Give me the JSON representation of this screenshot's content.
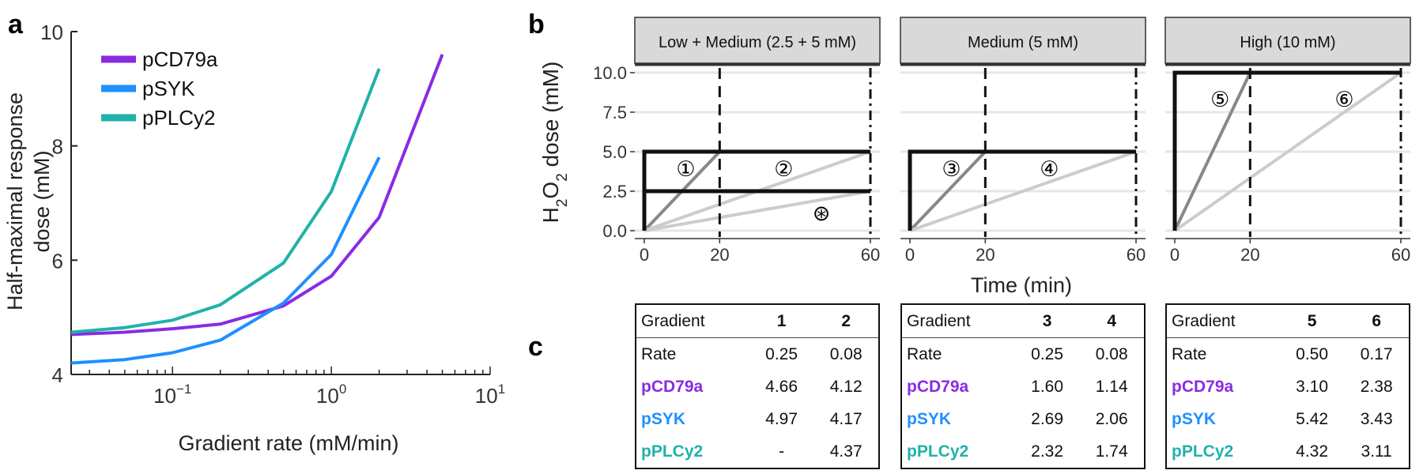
{
  "colors": {
    "pCD79a": "#8a2be2",
    "pSYK": "#1e90ff",
    "pPLCy2": "#20b2aa",
    "dark": "#111111",
    "mid": "#888888",
    "light": "#cccccc"
  },
  "panel_labels": {
    "a": "a",
    "b": "b",
    "c": "c"
  },
  "chart_data": [
    {
      "type": "line",
      "panel": "a",
      "xlabel": "Gradient rate (mM/min)",
      "ylabel_line1": "Half-maximal response",
      "ylabel_line2": "dose (mM)",
      "xscale": "log",
      "xlim": [
        0.023,
        10
      ],
      "ylim": [
        4,
        10
      ],
      "xticks": [
        {
          "value": 0.1,
          "base": "10",
          "exp": "−1"
        },
        {
          "value": 1,
          "base": "10",
          "exp": "0"
        },
        {
          "value": 10,
          "base": "10",
          "exp": "1"
        }
      ],
      "yticks": [
        "4",
        "6",
        "8",
        "10"
      ],
      "legend_position": "top-left",
      "series": [
        {
          "name": "pCD79a",
          "x": [
            0.023,
            0.05,
            0.1,
            0.2,
            0.5,
            1.0,
            2.0,
            5.0
          ],
          "y": [
            4.7,
            4.74,
            4.8,
            4.88,
            5.2,
            5.72,
            6.75,
            9.6
          ]
        },
        {
          "name": "pSYK",
          "x": [
            0.023,
            0.05,
            0.1,
            0.2,
            0.5,
            1.0,
            2.0
          ],
          "y": [
            4.2,
            4.26,
            4.38,
            4.6,
            5.25,
            6.1,
            7.8
          ]
        },
        {
          "name": "pPLCy2",
          "x": [
            0.023,
            0.05,
            0.1,
            0.2,
            0.5,
            1.0,
            2.0
          ],
          "y": [
            4.74,
            4.82,
            4.95,
            5.22,
            5.95,
            7.2,
            9.35
          ]
        }
      ]
    },
    {
      "type": "line",
      "panel": "b",
      "ylabel_main": "H",
      "ylabel_sub": "2",
      "ylabel_mid": "O",
      "ylabel_sub2": "2",
      "ylabel_tail": " dose (mM)",
      "xlabel": "Time (min)",
      "ylim": [
        0,
        10
      ],
      "yticks": [
        "0.0",
        "2.5",
        "5.0",
        "7.5",
        "10.0"
      ],
      "xticks": [
        "0",
        "20",
        "60"
      ],
      "facets": [
        {
          "strip": "Low + Medium (2.5 + 5 mM)",
          "steps": [
            5,
            2.5
          ],
          "ramps": [
            {
              "shade": "mid",
              "x": [
                0,
                20
              ],
              "y": [
                0,
                5
              ],
              "label": "①",
              "lx": 11,
              "ly": 3.9
            },
            {
              "shade": "light",
              "x": [
                0,
                60
              ],
              "y": [
                0,
                5
              ],
              "label": "②",
              "lx": 37,
              "ly": 3.9
            },
            {
              "shade": "light",
              "x": [
                0,
                60
              ],
              "y": [
                0,
                2.5
              ],
              "label": "⊛",
              "lx": 47,
              "ly": 1.1
            }
          ]
        },
        {
          "strip": "Medium (5 mM)",
          "steps": [
            5
          ],
          "ramps": [
            {
              "shade": "mid",
              "x": [
                0,
                20
              ],
              "y": [
                0,
                5
              ],
              "label": "③",
              "lx": 11,
              "ly": 3.9
            },
            {
              "shade": "light",
              "x": [
                0,
                60
              ],
              "y": [
                0,
                5
              ],
              "label": "④",
              "lx": 37,
              "ly": 3.9
            }
          ]
        },
        {
          "strip": "High (10 mM)",
          "steps": [
            10
          ],
          "ramps": [
            {
              "shade": "mid",
              "x": [
                0,
                20
              ],
              "y": [
                0,
                10
              ],
              "label": "⑤",
              "lx": 12,
              "ly": 8.3
            },
            {
              "shade": "light",
              "x": [
                0,
                60
              ],
              "y": [
                0,
                10
              ],
              "label": "⑥",
              "lx": 45,
              "ly": 8.3
            }
          ]
        }
      ]
    },
    {
      "type": "table",
      "panel": "c",
      "tables": [
        {
          "header": [
            "Gradient",
            "1",
            "2"
          ],
          "rows": [
            {
              "label": "Rate",
              "marker": "",
              "values": [
                "0.25",
                "0.08"
              ]
            },
            {
              "label": "pCD79a",
              "marker": "pCD79a",
              "values": [
                "4.66",
                "4.12"
              ]
            },
            {
              "label": "pSYK",
              "marker": "pSYK",
              "values": [
                "4.97",
                "4.17"
              ]
            },
            {
              "label": "pPLCy2",
              "marker": "pPLCy2",
              "values": [
                "-",
                "4.37"
              ]
            }
          ]
        },
        {
          "header": [
            "Gradient",
            "3",
            "4"
          ],
          "rows": [
            {
              "label": "Rate",
              "marker": "",
              "values": [
                "0.25",
                "0.08"
              ]
            },
            {
              "label": "pCD79a",
              "marker": "pCD79a",
              "values": [
                "1.60",
                "1.14"
              ]
            },
            {
              "label": "pSYK",
              "marker": "pSYK",
              "values": [
                "2.69",
                "2.06"
              ]
            },
            {
              "label": "pPLCy2",
              "marker": "pPLCy2",
              "values": [
                "2.32",
                "1.74"
              ]
            }
          ]
        },
        {
          "header": [
            "Gradient",
            "5",
            "6"
          ],
          "rows": [
            {
              "label": "Rate",
              "marker": "",
              "values": [
                "0.50",
                "0.17"
              ]
            },
            {
              "label": "pCD79a",
              "marker": "pCD79a",
              "values": [
                "3.10",
                "2.38"
              ]
            },
            {
              "label": "pSYK",
              "marker": "pSYK",
              "values": [
                "5.42",
                "3.43"
              ]
            },
            {
              "label": "pPLCy2",
              "marker": "pPLCy2",
              "values": [
                "4.32",
                "3.11"
              ]
            }
          ]
        }
      ]
    }
  ]
}
